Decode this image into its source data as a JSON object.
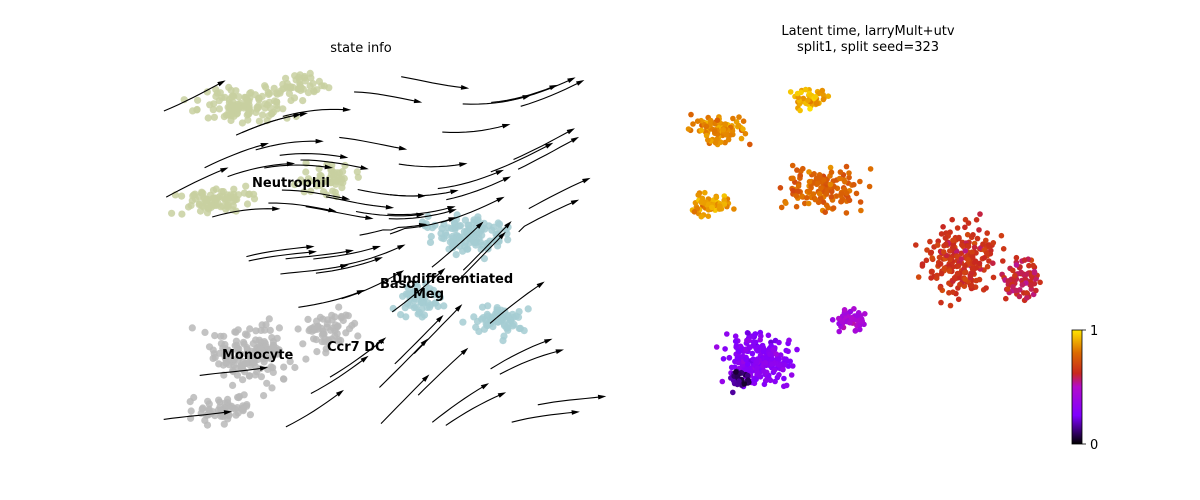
{
  "chart_data": [
    {
      "type": "scatter",
      "title": "state info",
      "categories": [
        "Neutrophil",
        "Undifferentiated",
        "Baso",
        "Meg",
        "Monocyte",
        "Ccr7 DC"
      ],
      "colors": {
        "Neutrophil": "#c8d0a0",
        "Undifferentiated": "#a4cdd2",
        "Baso": "#a4cdd2",
        "Meg": "#a4cdd2",
        "Monocyte": "#b8b8b8",
        "Ccr7 DC": "#b8b8b8"
      },
      "overlay": "velocity streamlines with arrowheads",
      "axes_visible": false
    },
    {
      "type": "scatter",
      "title": "Latent time, larryMult+utv",
      "subtitle": "split1, split seed=323",
      "colormap": "gnuplot",
      "colorbar": {
        "range": [
          0,
          1
        ],
        "ticks": [
          "0",
          "1"
        ]
      },
      "axes_visible": false
    }
  ]
}
